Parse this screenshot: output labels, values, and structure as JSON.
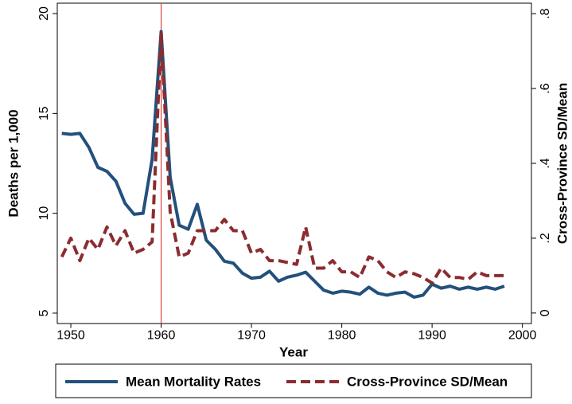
{
  "chart_data": {
    "type": "line",
    "x_label": "Year",
    "y_label": "Deaths per 1,000",
    "y2_label": "Cross-Province SD/Mean",
    "x": [
      1949,
      1950,
      1951,
      1952,
      1953,
      1954,
      1955,
      1956,
      1957,
      1958,
      1959,
      1960,
      1961,
      1962,
      1963,
      1964,
      1965,
      1966,
      1967,
      1968,
      1969,
      1970,
      1971,
      1972,
      1973,
      1974,
      1975,
      1976,
      1977,
      1978,
      1979,
      1980,
      1981,
      1982,
      1983,
      1984,
      1985,
      1986,
      1987,
      1988,
      1989,
      1990,
      1991,
      1992,
      1993,
      1994,
      1995,
      1996,
      1997,
      1998
    ],
    "series": [
      {
        "name": "Mean Mortality Rates",
        "color": "#23507c",
        "dashed": false,
        "values": [
          14.0,
          13.95,
          14.0,
          13.3,
          12.3,
          12.1,
          11.6,
          10.5,
          9.95,
          10.0,
          12.7,
          19.1,
          11.8,
          9.4,
          9.2,
          10.45,
          8.65,
          8.2,
          7.6,
          7.5,
          7.0,
          6.75,
          6.8,
          7.1,
          6.6,
          6.8,
          6.9,
          7.05,
          6.6,
          6.15,
          6.0,
          6.1,
          6.05,
          5.95,
          6.3,
          6.0,
          5.9,
          6.0,
          6.05,
          5.8,
          5.9,
          6.45,
          6.25,
          6.35,
          6.2,
          6.3,
          6.2,
          6.3,
          6.2,
          6.35
        ]
      },
      {
        "name": "Cross-Province SD/Mean",
        "color": "#8b2c30",
        "dashed": true,
        "axis": "y2",
        "values": [
          0.15,
          0.2,
          0.14,
          0.2,
          0.17,
          0.23,
          0.18,
          0.22,
          0.16,
          0.17,
          0.19,
          0.75,
          0.27,
          0.15,
          0.16,
          0.22,
          0.22,
          0.22,
          0.25,
          0.22,
          0.22,
          0.16,
          0.17,
          0.14,
          0.14,
          0.135,
          0.13,
          0.23,
          0.12,
          0.12,
          0.14,
          0.11,
          0.11,
          0.095,
          0.15,
          0.14,
          0.11,
          0.095,
          0.11,
          0.105,
          0.095,
          0.08,
          0.12,
          0.095,
          0.095,
          0.09,
          0.11,
          0.1,
          0.1,
          0.1
        ]
      }
    ],
    "vline": 1960,
    "vline_color": "#e0413a",
    "xlim": [
      1948.5,
      2001
    ],
    "xticks": [
      1950,
      1960,
      1970,
      1980,
      1990,
      2000
    ],
    "ylim": [
      4.5,
      20.5
    ],
    "yticks": [
      5,
      10,
      15,
      20
    ],
    "y2lim": [
      -0.027,
      0.827
    ],
    "y2ticks": [
      0,
      {
        "value": 0.2,
        "label": ".2"
      },
      {
        "value": 0.4,
        "label": ".4"
      },
      {
        "value": 0.6,
        "label": ".6"
      },
      {
        "value": 0.8,
        "label": ".8"
      }
    ]
  }
}
